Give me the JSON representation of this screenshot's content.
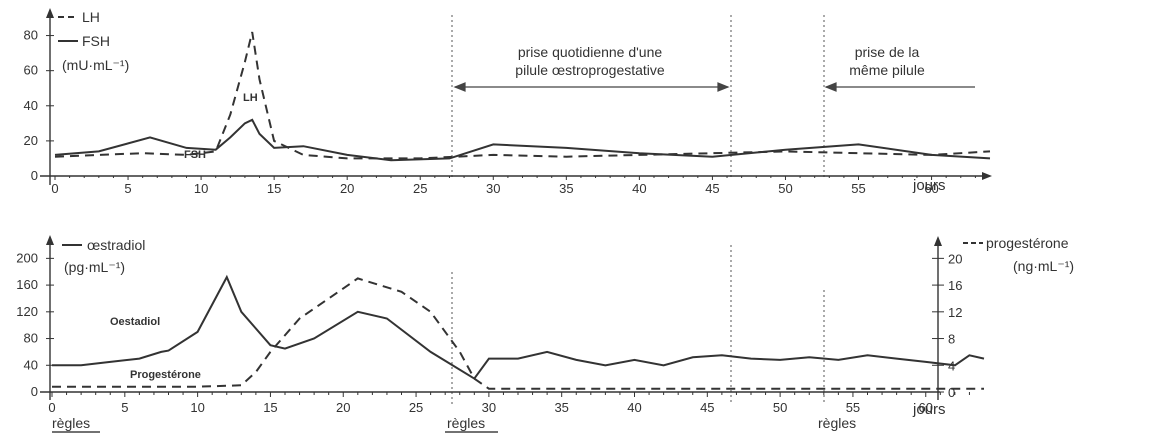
{
  "chart_data": [
    {
      "type": "line",
      "legend": [
        "LH",
        "FSH"
      ],
      "unit": "(mU·mL⁻¹)",
      "curve_labels": {
        "lh": "LH",
        "fsh": "FSH"
      },
      "xlabel": "jours",
      "xlim": [
        0,
        64
      ],
      "ylim": [
        0,
        90
      ],
      "x_ticks": [
        "0",
        "5",
        "10",
        "15",
        "20",
        "25",
        "30",
        "35",
        "40",
        "45",
        "50",
        "55",
        "60"
      ],
      "y_ticks": [
        "0",
        "20",
        "40",
        "60",
        "80"
      ],
      "annotations": [
        {
          "line1": "prise quotidienne d'une",
          "line2": "pilule œstroprogestative"
        },
        {
          "line1": "prise de la",
          "line2": "même pilule"
        }
      ],
      "series": [
        {
          "name": "LH",
          "style": "dashed",
          "x": [
            0,
            3,
            6,
            9,
            11,
            12,
            13,
            13.5,
            14,
            15,
            17,
            20,
            25,
            30,
            35,
            40,
            45,
            50,
            55,
            60,
            64
          ],
          "y": [
            11,
            12,
            13,
            12,
            14,
            35,
            65,
            82,
            55,
            20,
            12,
            10,
            10,
            12,
            11,
            12,
            13,
            14,
            13,
            12,
            14
          ]
        },
        {
          "name": "FSH",
          "style": "solid",
          "x": [
            0,
            3,
            6.5,
            9,
            11,
            12,
            13,
            13.5,
            14,
            15,
            17,
            20,
            23,
            27,
            30,
            35,
            40,
            45,
            50,
            55,
            60,
            64
          ],
          "y": [
            12,
            14,
            22,
            16,
            15,
            22,
            30,
            32,
            24,
            16,
            17,
            12,
            9,
            10,
            18,
            16,
            13,
            11,
            15,
            18,
            12,
            10
          ]
        }
      ]
    },
    {
      "type": "line",
      "legend_left": "œstradiol",
      "unit_left": "(pg·mL⁻¹)",
      "legend_right": "progestérone",
      "unit_right": "(ng·mL⁻¹)",
      "curve_labels": {
        "oestradiol": "Oestadiol",
        "progesterone": "Progestérone"
      },
      "xlabel": "jours",
      "xlim": [
        0,
        64
      ],
      "ylim_left": [
        0,
        220
      ],
      "ylim_right": [
        0,
        22
      ],
      "x_ticks": [
        "0",
        "5",
        "10",
        "15",
        "20",
        "25",
        "30",
        "35",
        "40",
        "45",
        "50",
        "55",
        "60"
      ],
      "y_ticks_left": [
        "0",
        "40",
        "80",
        "120",
        "160",
        "200"
      ],
      "y_ticks_right": [
        "0",
        "4",
        "8",
        "12",
        "16",
        "20"
      ],
      "regles": [
        "règles",
        "règles",
        "règles"
      ],
      "series": [
        {
          "name": "œstradiol",
          "axis": "left",
          "style": "solid",
          "x": [
            0,
            2,
            4,
            6,
            7.5,
            8,
            10,
            12,
            13,
            15,
            16,
            18,
            21,
            23,
            26,
            29,
            30,
            32,
            34,
            36,
            38,
            40,
            42,
            44,
            46,
            48,
            50,
            52,
            54,
            56,
            58,
            60,
            62,
            63,
            64
          ],
          "y": [
            40,
            40,
            45,
            50,
            60,
            62,
            90,
            172,
            120,
            70,
            65,
            80,
            120,
            110,
            60,
            20,
            50,
            50,
            60,
            48,
            40,
            48,
            40,
            52,
            55,
            50,
            48,
            52,
            48,
            55,
            50,
            45,
            40,
            55,
            50
          ]
        },
        {
          "name": "progestérone",
          "axis": "right",
          "style": "dashed",
          "x": [
            0,
            5,
            10,
            13,
            14,
            15,
            17,
            20,
            21,
            24,
            26,
            28,
            29,
            30,
            35,
            40,
            45,
            50,
            55,
            60,
            64
          ],
          "y": [
            0.8,
            0.8,
            0.8,
            1,
            3,
            6,
            11,
            15.5,
            17,
            15,
            12,
            6,
            2,
            0.5,
            0.5,
            0.5,
            0.5,
            0.5,
            0.5,
            0.5,
            0.5
          ]
        }
      ]
    }
  ]
}
